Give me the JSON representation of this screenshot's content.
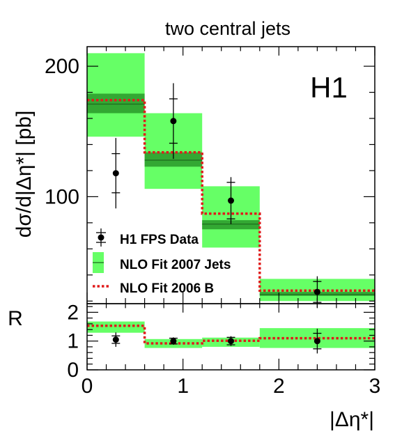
{
  "chart_data": {
    "type": "bar",
    "title": "two central jets",
    "label": "H1",
    "xlabel": "|Δη*|",
    "main": {
      "ylabel": "dσ/d|Δη*| [pb]",
      "xlim": [
        0,
        3
      ],
      "ylim": [
        18,
        215
      ],
      "yticks": [
        100,
        200
      ],
      "bins": [
        [
          0,
          0.6
        ],
        [
          0.6,
          1.2
        ],
        [
          1.2,
          1.8
        ],
        [
          1.8,
          3.0
        ]
      ],
      "data": {
        "name": "H1 FPS Data",
        "x": [
          0.3,
          0.9,
          1.5,
          2.4
        ],
        "y": [
          118,
          158,
          97,
          27
        ],
        "stat_err": [
          15,
          17,
          14,
          8
        ],
        "tot_err": [
          27,
          29,
          18,
          12
        ]
      },
      "nlo_2007": {
        "name": "NLO Fit 2007 Jets",
        "central": [
          171,
          128,
          79,
          25
        ],
        "inner_band": [
          [
            164,
            179
          ],
          [
            123,
            134
          ],
          [
            75,
            82
          ],
          [
            24,
            27
          ]
        ],
        "outer_band": [
          [
            146,
            210
          ],
          [
            106,
            164
          ],
          [
            61,
            108
          ],
          [
            20,
            37
          ]
        ]
      },
      "nlo_2006b": {
        "name": "NLO Fit 2006 B",
        "values": [
          174,
          134,
          87,
          28
        ]
      }
    },
    "ratio": {
      "ylabel": "R",
      "ylim": [
        0,
        2.3
      ],
      "yticks": [
        0,
        1,
        2
      ],
      "data": {
        "y": [
          1.05,
          1.0,
          1.0,
          1.0
        ],
        "stat_err": [
          0.13,
          0.1,
          0.13,
          0.27
        ],
        "tot_err": [
          0.25,
          0.13,
          0.17,
          0.43
        ]
      },
      "band": [
        [
          1.29,
          1.68
        ],
        [
          0.76,
          1.07
        ],
        [
          0.8,
          1.12
        ],
        [
          0.76,
          1.45
        ]
      ],
      "nlo_2006b": [
        1.53,
        0.92,
        1.01,
        1.1
      ]
    },
    "xticks": [
      0,
      1,
      2,
      3
    ],
    "legend_position": "bottom-left",
    "colors": {
      "outer_band": "#66ff66",
      "inner_band": "#33a833",
      "line": "#1e6e1e",
      "dashed": "#e01b1b",
      "data": "#000000"
    }
  }
}
